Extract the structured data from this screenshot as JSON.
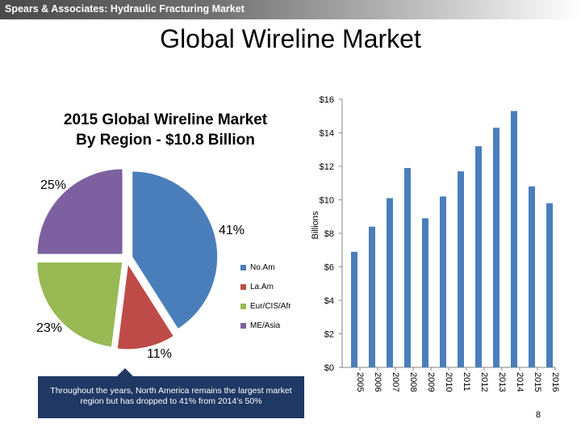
{
  "header": {
    "title": "Spears & Associates: Hydraulic Fracturing Market"
  },
  "page": {
    "title": "Global Wireline Market",
    "page_number": "8"
  },
  "colors": {
    "na_am": "#4a7ebb",
    "la_am": "#be4b48",
    "eur_cis_afr": "#98b954",
    "me_asia": "#7d60a0",
    "bar": "#4a7ebb",
    "callout": "#1f3864"
  },
  "callout": {
    "text": "Throughout the years, North America remains the largest market region but has dropped to 41% from 2014’s 50%"
  },
  "chart_data": [
    {
      "type": "pie",
      "title": "2015 Global Wireline Market By Region - $10.8 Billion",
      "title_line1": "2015 Global Wireline Market",
      "title_line2": "By Region - $10.8 Billion",
      "slices": [
        {
          "label": "No.Am",
          "value": 41,
          "display": "41%"
        },
        {
          "label": "La.Am",
          "value": 11,
          "display": "11%"
        },
        {
          "label": "Eur/CIS/Afr",
          "value": 23,
          "display": "23%"
        },
        {
          "label": "ME/Asia",
          "value": 25,
          "display": "25%"
        }
      ],
      "legend": "right"
    },
    {
      "type": "bar",
      "categories": [
        "2005",
        "2006",
        "2007",
        "2008",
        "2009",
        "2010",
        "2011",
        "2012",
        "2013",
        "2014",
        "2015",
        "2016"
      ],
      "values": [
        6.9,
        8.4,
        10.1,
        11.9,
        8.9,
        10.2,
        11.7,
        13.2,
        14.3,
        15.3,
        10.8,
        9.8
      ],
      "ylabel": "Billions",
      "ylim": [
        0,
        16
      ],
      "yticks": [
        "$0",
        "$2",
        "$4",
        "$6",
        "$8",
        "$10",
        "$12",
        "$14",
        "$16"
      ]
    }
  ]
}
